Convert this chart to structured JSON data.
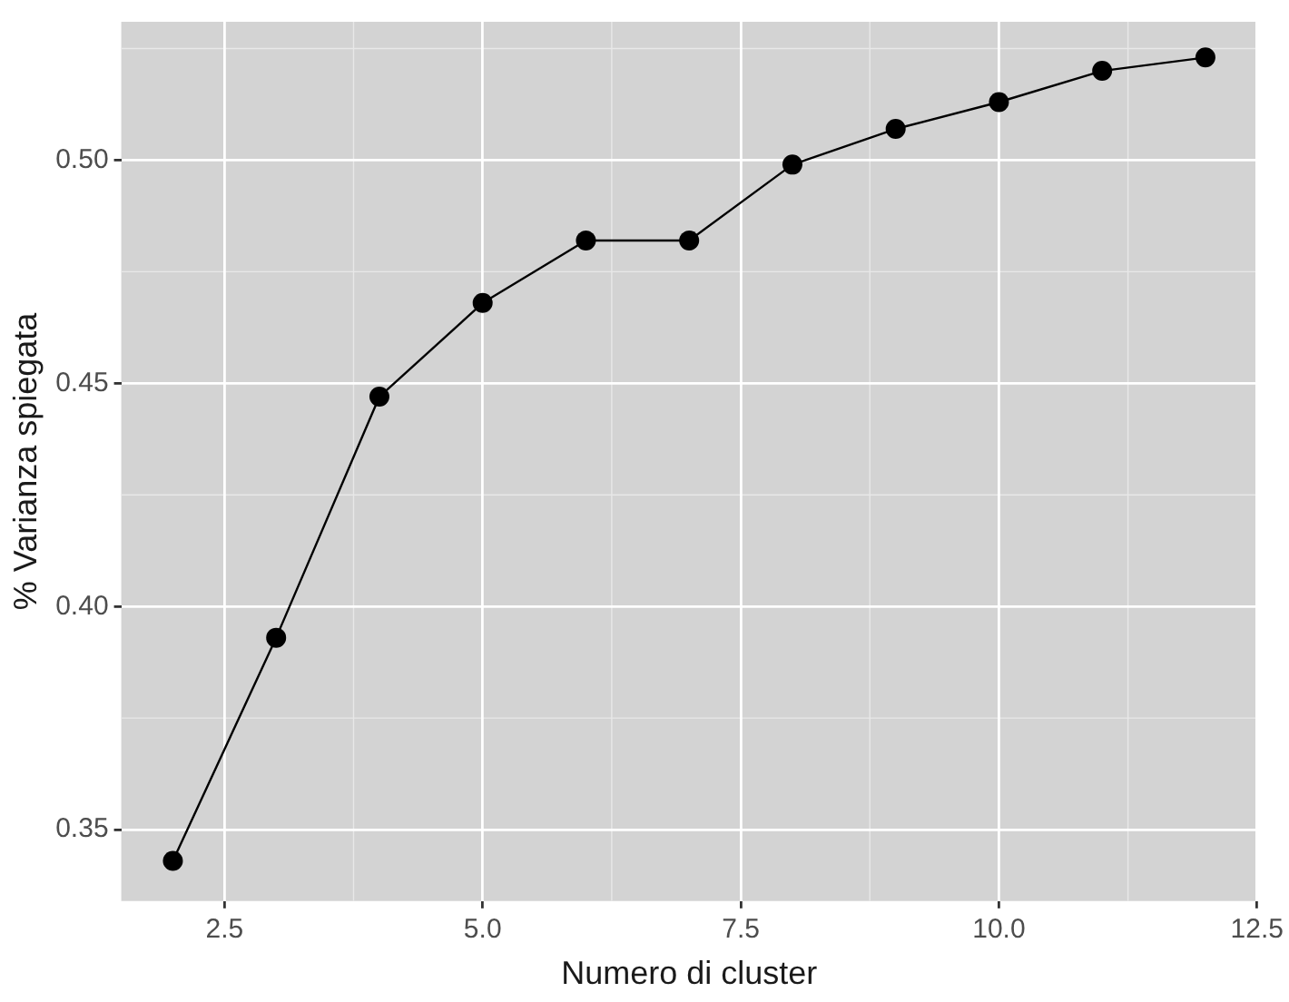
{
  "chart_data": {
    "type": "line",
    "xlabel": "Numero di cluster",
    "ylabel": "% Varianza spiegata",
    "x": [
      2,
      3,
      4,
      5,
      6,
      7,
      8,
      9,
      10,
      11,
      12
    ],
    "series": [
      {
        "color": "#000000",
        "values": [
          0.343,
          0.393,
          0.447,
          0.468,
          0.482,
          0.482,
          0.499,
          0.507,
          0.513,
          0.52,
          0.523
        ]
      }
    ],
    "xlim": [
      1.5,
      12.5
    ],
    "xticks": [
      {
        "value": 2.5,
        "label": "2.5"
      },
      {
        "value": 5,
        "label": "5.0"
      },
      {
        "value": 7.5,
        "label": "7.5"
      },
      {
        "value": 10,
        "label": "10.0"
      },
      {
        "value": 12.5,
        "label": "12.5"
      }
    ],
    "ylim": [
      0.334,
      0.531
    ],
    "yticks": [
      {
        "value": 0.35,
        "label": "0.35"
      },
      {
        "value": 0.4,
        "label": "0.40"
      },
      {
        "value": 0.45,
        "label": "0.45"
      },
      {
        "value": 0.5,
        "label": "0.50"
      }
    ],
    "grid": true,
    "marker": "circle",
    "line_style": "solid",
    "legend": false
  }
}
